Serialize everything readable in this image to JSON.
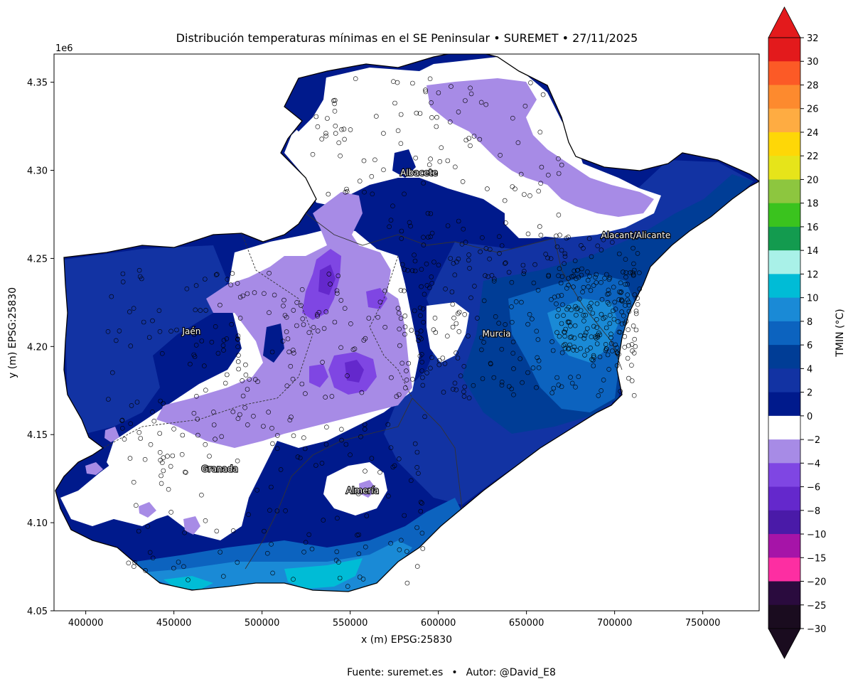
{
  "figure": {
    "title": "Distribución temperaturas mínimas en el SE Peninsular • SUREMET • 27/11/2025",
    "footer_source": "Fuente: suremet.es",
    "footer_bullet": "•",
    "footer_author": "Autor: @David_E8"
  },
  "axes": {
    "xlabel": "x (m) EPSG:25830",
    "ylabel": "y (m) EPSG:25830",
    "y_offset_label": "1e6",
    "x_range": [
      382000,
      782000
    ],
    "y_range": [
      4.05,
      4.366
    ],
    "x_ticks": [
      {
        "value": 400000,
        "label": "400000"
      },
      {
        "value": 450000,
        "label": "450000"
      },
      {
        "value": 500000,
        "label": "500000"
      },
      {
        "value": 550000,
        "label": "550000"
      },
      {
        "value": 600000,
        "label": "600000"
      },
      {
        "value": 650000,
        "label": "650000"
      },
      {
        "value": 700000,
        "label": "700000"
      },
      {
        "value": 750000,
        "label": "750000"
      }
    ],
    "y_ticks": [
      {
        "value": 4.05,
        "label": "4.05"
      },
      {
        "value": 4.1,
        "label": "4.10"
      },
      {
        "value": 4.15,
        "label": "4.15"
      },
      {
        "value": 4.2,
        "label": "4.20"
      },
      {
        "value": 4.25,
        "label": "4.25"
      },
      {
        "value": 4.3,
        "label": "4.30"
      },
      {
        "value": 4.35,
        "label": "4.35"
      }
    ]
  },
  "cities": [
    {
      "name": "Albacete",
      "x": 589000,
      "y": 4.297
    },
    {
      "name": "Jaén",
      "x": 460000,
      "y": 4.207
    },
    {
      "name": "Murcia",
      "x": 633000,
      "y": 4.2055
    },
    {
      "name": "Alacant/Alicante",
      "x": 712000,
      "y": 4.2615
    },
    {
      "name": "Granada",
      "x": 476000,
      "y": 4.129
    },
    {
      "name": "Almería",
      "x": 557000,
      "y": 4.1165
    }
  ],
  "colorbar": {
    "label": "TMIN (°C)",
    "extend_top_color": "#e31a1c",
    "extend_bottom_color": "#1a0c1f",
    "bins": [
      {
        "label": "32",
        "color": "#e31a1c"
      },
      {
        "label": "30",
        "color": "#fc5a26"
      },
      {
        "label": "28",
        "color": "#fd8a2e"
      },
      {
        "label": "26",
        "color": "#feac42"
      },
      {
        "label": "24",
        "color": "#fed707"
      },
      {
        "label": "22",
        "color": "#e6e41a"
      },
      {
        "label": "20",
        "color": "#8dc63f"
      },
      {
        "label": "18",
        "color": "#3ac31e"
      },
      {
        "label": "16",
        "color": "#139b4f"
      },
      {
        "label": "14",
        "color": "#a9f1e8"
      },
      {
        "label": "12",
        "color": "#00bcd6"
      },
      {
        "label": "10",
        "color": "#1a8ad6"
      },
      {
        "label": "8",
        "color": "#0c63bf"
      },
      {
        "label": "6",
        "color": "#003d96"
      },
      {
        "label": "4",
        "color": "#1233a3"
      },
      {
        "label": "2",
        "color": "#001a8c"
      },
      {
        "label": "0",
        "color": "#ffffff"
      },
      {
        "label": "−2",
        "color": "#a78be6"
      },
      {
        "label": "−4",
        "color": "#7f46e3"
      },
      {
        "label": "−6",
        "color": "#6428cc"
      },
      {
        "label": "−8",
        "color": "#4a1aa8"
      },
      {
        "label": "−10",
        "color": "#a614a8"
      },
      {
        "label": "−15",
        "color": "#fd2ea2"
      },
      {
        "label": "−20",
        "color": "#2a0b3e"
      },
      {
        "label": "−25",
        "color": "#1a0c1f"
      },
      {
        "label": "−30",
        "color": ""
      }
    ]
  },
  "colors": {
    "dark_navy": "#001a8c",
    "navy": "#1233a3",
    "mid_blue": "#003d96",
    "blue": "#0c63bf",
    "light_blue": "#1a8ad6",
    "cyan": "#00bcd6",
    "lavender": "#a78be6",
    "violet": "#7f46e3",
    "purple": "#6428cc",
    "white": "#ffffff"
  }
}
